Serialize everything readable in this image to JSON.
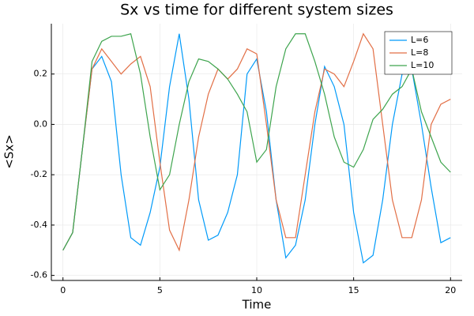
{
  "chart_data": {
    "type": "line",
    "title": "Sx vs time for different system sizes",
    "x_label": "Time",
    "y_label": "<Sx>",
    "x": [
      0,
      0.5,
      1,
      1.5,
      2,
      2.5,
      3,
      3.5,
      4,
      4.5,
      5,
      5.5,
      6,
      6.5,
      7,
      7.5,
      8,
      8.5,
      9,
      9.5,
      10,
      10.5,
      11,
      11.5,
      12,
      12.5,
      13,
      13.5,
      14,
      14.5,
      15,
      15.5,
      16,
      16.5,
      17,
      17.5,
      18,
      18.5,
      19,
      19.5,
      20
    ],
    "series": [
      {
        "name": "L=6",
        "color": "#009af9",
        "values": [
          -0.5,
          -0.43,
          -0.1,
          0.22,
          0.27,
          0.17,
          -0.2,
          -0.45,
          -0.48,
          -0.35,
          -0.17,
          0.15,
          0.36,
          0.1,
          -0.3,
          -0.46,
          -0.44,
          -0.35,
          -0.2,
          0.2,
          0.26,
          0.05,
          -0.3,
          -0.53,
          -0.48,
          -0.3,
          0.0,
          0.23,
          0.15,
          0.0,
          -0.35,
          -0.55,
          -0.52,
          -0.3,
          0.0,
          0.2,
          0.22,
          0.0,
          -0.25,
          -0.47,
          -0.45
        ]
      },
      {
        "name": "L=8",
        "color": "#e26f46",
        "values": [
          -0.5,
          -0.43,
          -0.1,
          0.22,
          0.3,
          0.25,
          0.2,
          0.24,
          0.27,
          0.15,
          -0.15,
          -0.42,
          -0.5,
          -0.3,
          -0.05,
          0.12,
          0.22,
          0.18,
          0.22,
          0.3,
          0.28,
          0.0,
          -0.3,
          -0.45,
          -0.45,
          -0.2,
          0.05,
          0.22,
          0.2,
          0.15,
          0.25,
          0.36,
          0.3,
          0.0,
          -0.3,
          -0.45,
          -0.45,
          -0.3,
          0.0,
          0.08,
          0.1
        ]
      },
      {
        "name": "L=10",
        "color": "#3da44d",
        "values": [
          -0.5,
          -0.43,
          -0.1,
          0.25,
          0.33,
          0.35,
          0.35,
          0.36,
          0.2,
          -0.05,
          -0.26,
          -0.2,
          0.0,
          0.17,
          0.26,
          0.25,
          0.22,
          0.18,
          0.12,
          0.05,
          -0.15,
          -0.1,
          0.15,
          0.3,
          0.36,
          0.36,
          0.25,
          0.12,
          -0.05,
          -0.15,
          -0.17,
          -0.1,
          0.02,
          0.06,
          0.12,
          0.15,
          0.22,
          0.05,
          -0.05,
          -0.15,
          -0.19
        ]
      }
    ],
    "xlim": [
      -0.6,
      20.6
    ],
    "ylim": [
      -0.62,
      0.4
    ],
    "xticks": [
      0,
      5,
      10,
      15,
      20
    ],
    "yticks": [
      -0.6,
      -0.4,
      -0.2,
      {
        "value": 0,
        "label": "0.0"
      },
      0.2
    ],
    "grid": true,
    "legend": "top-right"
  }
}
